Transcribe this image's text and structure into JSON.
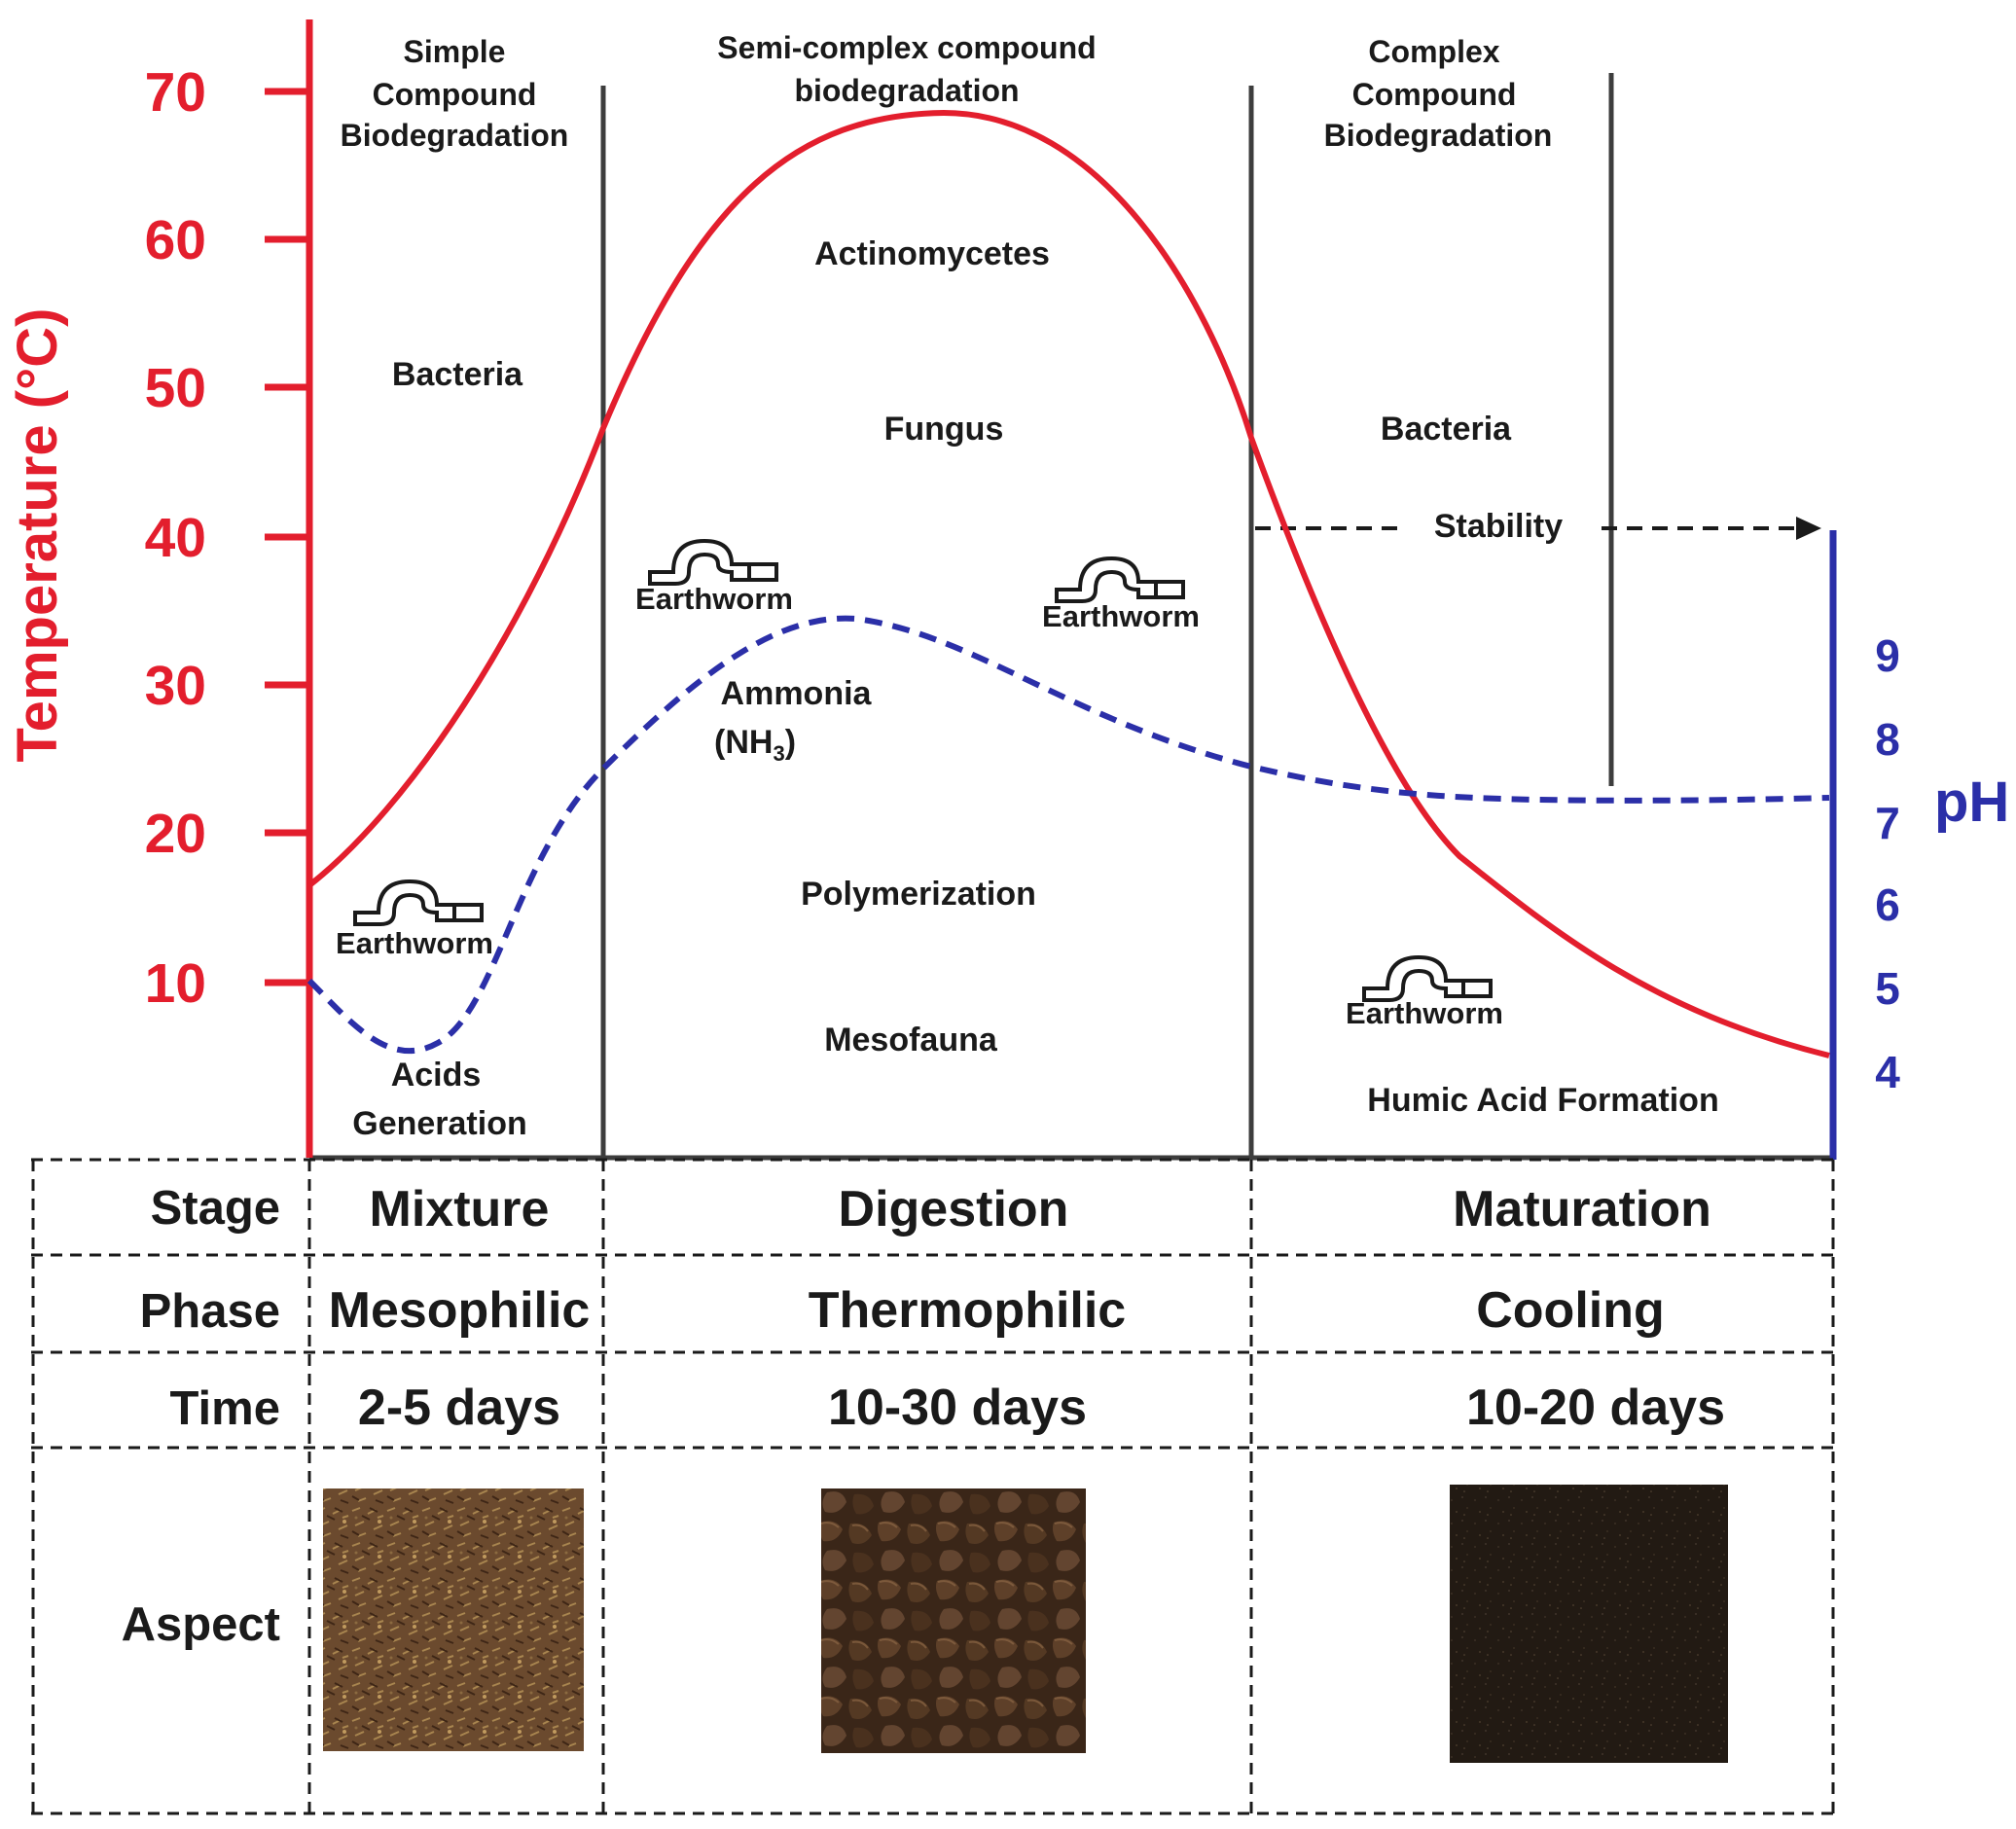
{
  "colors": {
    "temperature": "#e31e2d",
    "ph": "#2b2fa8",
    "divider": "#3d3d3d",
    "text": "#1a1a1a"
  },
  "axes": {
    "temperature_label": "Temperature (°C)",
    "ph_label": "pH",
    "temperature_ticks": [
      "70",
      "60",
      "50",
      "40",
      "30",
      "20",
      "10"
    ],
    "ph_ticks": [
      "9",
      "8",
      "7",
      "6",
      "5",
      "4"
    ]
  },
  "headers": {
    "simple": [
      "Simple",
      "Compound",
      "Biodegradation"
    ],
    "semi": [
      "Semi-complex compound",
      "biodegradation"
    ],
    "complex": [
      "Complex",
      "Compound",
      "Biodegradation"
    ]
  },
  "labels": {
    "bacteria_left": "Bacteria",
    "actinomycetes": "Actinomycetes",
    "fungus": "Fungus",
    "bacteria_right": "Bacteria",
    "stability": "Stability",
    "earthworm": "Earthworm",
    "ammonia": "Ammonia",
    "ammonia_formula": "(NH",
    "ammonia_sub": "3",
    "ammonia_close": ")",
    "polymerization": "Polymerization",
    "mesofauna": "Mesofauna",
    "acids": [
      "Acids",
      "Generation"
    ],
    "humic": "Humic Acid Formation"
  },
  "table": {
    "rows": [
      {
        "label": "Stage",
        "values": [
          "Mixture",
          "Digestion",
          "Maturation"
        ]
      },
      {
        "label": "Phase",
        "values": [
          "Mesophilic",
          "Thermophilic",
          "Cooling"
        ]
      },
      {
        "label": "Time",
        "values": [
          "2-5 days",
          "10-30 days",
          "10-20 days"
        ]
      },
      {
        "label": "Aspect",
        "values": [
          "",
          "",
          ""
        ]
      }
    ]
  }
}
